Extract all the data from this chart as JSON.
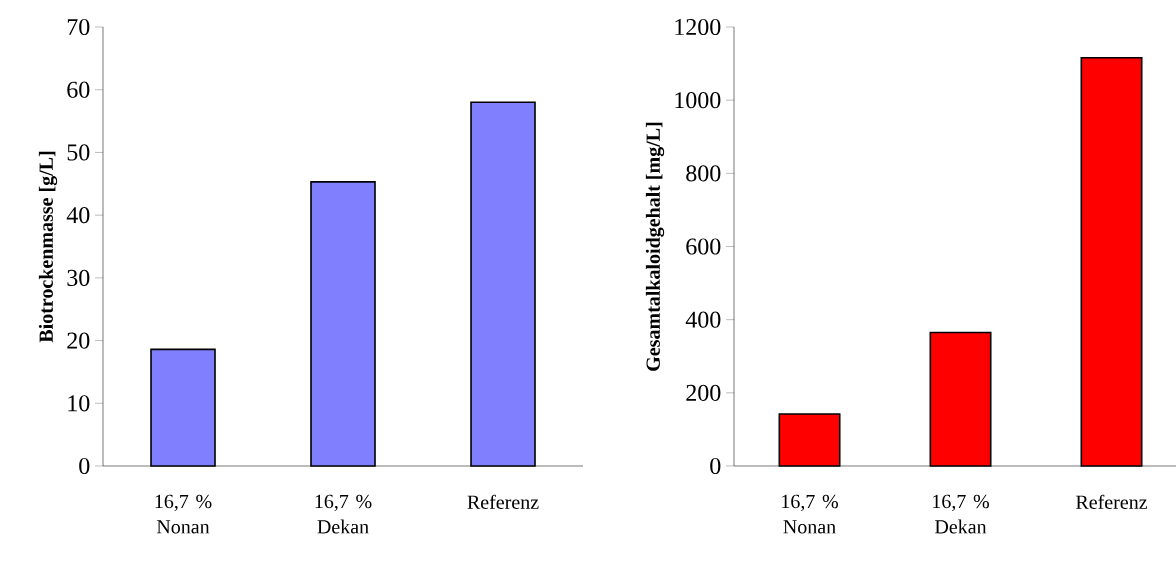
{
  "chart_data": [
    {
      "type": "bar",
      "categories": [
        "16,7 % Nonan",
        "16,7 % Dekan",
        "Referenz"
      ],
      "values": [
        18.6,
        45.3,
        58.0
      ],
      "color": "#8080ff",
      "ylabel": "Biotrockenmasse [g/L]",
      "ylim": [
        0,
        70
      ],
      "yticks": [
        0,
        10,
        20,
        30,
        40,
        50,
        60,
        70
      ]
    },
    {
      "type": "bar",
      "categories": [
        "16,7 % Nonan",
        "16,7 % Dekan",
        "Referenz"
      ],
      "values": [
        142,
        365,
        1116
      ],
      "color": "#ff0000",
      "ylabel": "Gesamtalkaloidgehalt [mg/L]",
      "ylim": [
        0,
        1200
      ],
      "yticks": [
        0,
        200,
        400,
        600,
        800,
        1000,
        1200
      ]
    }
  ]
}
